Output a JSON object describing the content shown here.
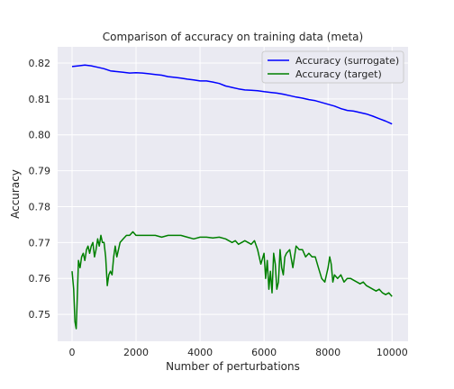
{
  "chart_data": {
    "type": "line",
    "title": "Comparison of accuracy on training data (meta)",
    "xlabel": "Number of perturbations",
    "ylabel": "Accuracy",
    "xlim": [
      -450,
      10500
    ],
    "ylim": [
      0.7425,
      0.8245
    ],
    "xticks": [
      0,
      2000,
      4000,
      6000,
      8000,
      10000
    ],
    "xtick_labels": [
      "0",
      "2000",
      "4000",
      "6000",
      "8000",
      "10000"
    ],
    "yticks": [
      0.75,
      0.76,
      0.77,
      0.78,
      0.79,
      0.8,
      0.81,
      0.82
    ],
    "ytick_labels": [
      "0.75",
      "0.76",
      "0.77",
      "0.78",
      "0.79",
      "0.80",
      "0.81",
      "0.82"
    ],
    "grid": true,
    "legend_position": "top-right",
    "colors": {
      "background": "#eaeaf2",
      "grid": "#ffffff"
    },
    "series": [
      {
        "name": "Accuracy (surrogate)",
        "color": "#0000ff",
        "x": [
          0,
          200,
          400,
          600,
          800,
          1000,
          1200,
          1400,
          1600,
          1800,
          2000,
          2200,
          2400,
          2600,
          2800,
          3000,
          3200,
          3400,
          3600,
          3800,
          4000,
          4200,
          4400,
          4600,
          4800,
          5000,
          5200,
          5400,
          5600,
          5800,
          6000,
          6200,
          6400,
          6600,
          6800,
          7000,
          7200,
          7400,
          7600,
          7800,
          8000,
          8200,
          8400,
          8600,
          8800,
          9000,
          9200,
          9400,
          9600,
          9800,
          10000
        ],
        "y": [
          0.819,
          0.8192,
          0.8194,
          0.8192,
          0.8188,
          0.8184,
          0.8178,
          0.8176,
          0.8174,
          0.8172,
          0.8173,
          0.8172,
          0.817,
          0.8168,
          0.8166,
          0.8162,
          0.816,
          0.8158,
          0.8155,
          0.8153,
          0.815,
          0.815,
          0.8147,
          0.8143,
          0.8136,
          0.8132,
          0.8128,
          0.8125,
          0.8124,
          0.8123,
          0.812,
          0.8118,
          0.8116,
          0.8113,
          0.8109,
          0.8105,
          0.8102,
          0.8098,
          0.8095,
          0.809,
          0.8085,
          0.808,
          0.8073,
          0.8068,
          0.8066,
          0.8062,
          0.8058,
          0.8052,
          0.8045,
          0.8038,
          0.803
        ]
      },
      {
        "name": "Accuracy (target)",
        "color": "#008000",
        "x": [
          0,
          50,
          90,
          130,
          160,
          200,
          250,
          300,
          350,
          400,
          450,
          500,
          550,
          600,
          650,
          700,
          750,
          800,
          850,
          900,
          950,
          1000,
          1050,
          1100,
          1150,
          1200,
          1250,
          1300,
          1350,
          1400,
          1500,
          1600,
          1700,
          1800,
          1900,
          2000,
          2200,
          2400,
          2600,
          2800,
          3000,
          3200,
          3400,
          3600,
          3800,
          4000,
          4200,
          4400,
          4600,
          4800,
          5000,
          5100,
          5200,
          5300,
          5400,
          5500,
          5600,
          5700,
          5800,
          5900,
          6000,
          6050,
          6100,
          6150,
          6200,
          6250,
          6300,
          6350,
          6400,
          6450,
          6500,
          6550,
          6600,
          6650,
          6700,
          6800,
          6900,
          7000,
          7100,
          7200,
          7300,
          7400,
          7500,
          7600,
          7700,
          7800,
          7900,
          8000,
          8050,
          8100,
          8150,
          8200,
          8300,
          8400,
          8500,
          8600,
          8700,
          8800,
          8900,
          9000,
          9100,
          9200,
          9300,
          9400,
          9500,
          9600,
          9700,
          9800,
          9900,
          10000
        ],
        "y": [
          0.762,
          0.757,
          0.748,
          0.746,
          0.754,
          0.765,
          0.763,
          0.766,
          0.767,
          0.765,
          0.768,
          0.769,
          0.767,
          0.769,
          0.77,
          0.766,
          0.768,
          0.771,
          0.769,
          0.772,
          0.77,
          0.77,
          0.766,
          0.758,
          0.761,
          0.762,
          0.761,
          0.766,
          0.769,
          0.766,
          0.77,
          0.771,
          0.772,
          0.772,
          0.773,
          0.772,
          0.772,
          0.772,
          0.772,
          0.7715,
          0.772,
          0.772,
          0.772,
          0.7715,
          0.771,
          0.7715,
          0.7715,
          0.7713,
          0.7715,
          0.771,
          0.77,
          0.7705,
          0.7695,
          0.77,
          0.7705,
          0.77,
          0.7695,
          0.7705,
          0.768,
          0.764,
          0.767,
          0.76,
          0.765,
          0.757,
          0.762,
          0.756,
          0.767,
          0.764,
          0.757,
          0.759,
          0.768,
          0.763,
          0.761,
          0.766,
          0.767,
          0.768,
          0.763,
          0.769,
          0.768,
          0.768,
          0.766,
          0.767,
          0.766,
          0.766,
          0.763,
          0.76,
          0.759,
          0.763,
          0.766,
          0.764,
          0.759,
          0.761,
          0.76,
          0.761,
          0.759,
          0.76,
          0.76,
          0.7595,
          0.759,
          0.7585,
          0.759,
          0.758,
          0.7575,
          0.757,
          0.7565,
          0.757,
          0.756,
          0.7555,
          0.756,
          0.755
        ]
      }
    ]
  }
}
